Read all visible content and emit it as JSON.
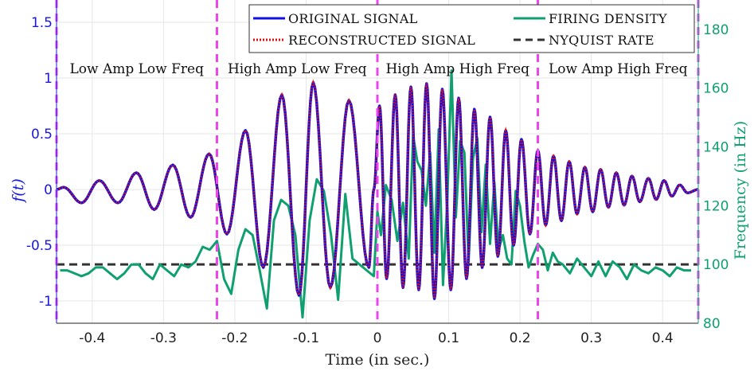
{
  "chart_data": {
    "type": "line",
    "xlabel": "Time (in sec.)",
    "ylabel_left": "f(t)",
    "ylabel_right": "Frequency (in Hz)",
    "xlim": [
      -0.45,
      0.45
    ],
    "ylim_left": [
      -1.2,
      1.7
    ],
    "ylim_right": [
      80,
      190
    ],
    "x_ticks": [
      -0.4,
      -0.3,
      -0.2,
      -0.1,
      0,
      0.1,
      0.2,
      0.3,
      0.4
    ],
    "x_tick_labels": [
      "-0.4",
      "-0.3",
      "-0.2",
      "-0.1",
      "0",
      "0.1",
      "0.2",
      "0.3",
      "0.4"
    ],
    "y_left_ticks": [
      -1,
      -0.5,
      0,
      0.5,
      1,
      1.5
    ],
    "y_left_tick_labels": [
      "-1",
      "-0.5",
      "0",
      "0.5",
      "1",
      "1.5"
    ],
    "y_right_ticks": [
      80,
      100,
      120,
      140,
      160,
      180
    ],
    "y_right_tick_labels": [
      "80",
      "100",
      "120",
      "140",
      "160",
      "180"
    ],
    "grid": true,
    "legend_position": "top-right",
    "legend": [
      {
        "label": "ORIGINAL SIGNAL",
        "color": "#1010e0",
        "style": "solid"
      },
      {
        "label": "RECONSTRUCTED SIGNAL",
        "color": "#e01010",
        "style": "dotted"
      },
      {
        "label": "FIRING DENSITY",
        "color": "#10a070",
        "style": "solid"
      },
      {
        "label": "NYQUIST RATE",
        "color": "#333333",
        "style": "dashed"
      }
    ],
    "regions": [
      {
        "label": "Low Amp Low Freq",
        "x_center": -0.3375
      },
      {
        "label": "High Amp Low Freq",
        "x_center": -0.1125
      },
      {
        "label": "High Amp High Freq",
        "x_center": 0.1125
      },
      {
        "label": "Low Amp High Freq",
        "x_center": 0.3375
      }
    ],
    "region_boundaries": [
      -0.45,
      -0.225,
      0,
      0.225,
      0.45
    ],
    "nyquist_rate": 100,
    "signal_extrema": {
      "x": [
        -0.45,
        -0.44,
        -0.415,
        -0.39,
        -0.364,
        -0.338,
        -0.313,
        -0.287,
        -0.262,
        -0.236,
        -0.211,
        -0.185,
        -0.16,
        -0.134,
        -0.11,
        -0.09,
        -0.066,
        -0.04,
        -0.012,
        -0.005,
        0.003,
        0.013,
        0.025,
        0.036,
        0.047,
        0.058,
        0.069,
        0.08,
        0.091,
        0.103,
        0.114,
        0.125,
        0.136,
        0.147,
        0.158,
        0.169,
        0.18,
        0.191,
        0.202,
        0.214,
        0.225,
        0.236,
        0.247,
        0.258,
        0.269,
        0.28,
        0.291,
        0.302,
        0.313,
        0.324,
        0.335,
        0.346,
        0.357,
        0.368,
        0.38,
        0.391,
        0.402,
        0.413,
        0.424,
        0.435,
        0.45
      ],
      "f": [
        0.0,
        0.02,
        -0.12,
        0.08,
        -0.12,
        0.15,
        -0.18,
        0.22,
        -0.25,
        0.32,
        -0.4,
        0.53,
        -0.7,
        0.85,
        -0.95,
        0.96,
        -0.88,
        0.8,
        -0.7,
        0.0,
        0.75,
        -0.8,
        0.85,
        -0.88,
        0.92,
        -0.9,
        0.95,
        -0.98,
        0.9,
        -0.9,
        0.82,
        -0.8,
        0.72,
        -0.7,
        0.65,
        -0.6,
        0.53,
        -0.5,
        0.45,
        -0.4,
        0.35,
        -0.32,
        0.3,
        -0.28,
        0.25,
        -0.22,
        0.2,
        -0.2,
        0.18,
        -0.16,
        0.15,
        -0.14,
        0.12,
        -0.11,
        0.1,
        -0.09,
        0.08,
        -0.06,
        0.04,
        -0.03,
        0.0
      ]
    },
    "firing_density": {
      "x": [
        -0.445,
        -0.435,
        -0.425,
        -0.415,
        -0.405,
        -0.395,
        -0.385,
        -0.375,
        -0.365,
        -0.355,
        -0.345,
        -0.335,
        -0.325,
        -0.315,
        -0.305,
        -0.295,
        -0.285,
        -0.275,
        -0.265,
        -0.255,
        -0.245,
        -0.235,
        -0.225,
        -0.215,
        -0.205,
        -0.195,
        -0.185,
        -0.175,
        -0.165,
        -0.155,
        -0.145,
        -0.135,
        -0.125,
        -0.115,
        -0.105,
        -0.095,
        -0.085,
        -0.075,
        -0.065,
        -0.055,
        -0.045,
        -0.035,
        -0.025,
        -0.015,
        -0.005,
        0.0,
        0.005,
        0.012,
        0.02,
        0.028,
        0.036,
        0.044,
        0.05,
        0.056,
        0.062,
        0.068,
        0.074,
        0.08,
        0.086,
        0.092,
        0.098,
        0.104,
        0.11,
        0.116,
        0.122,
        0.128,
        0.134,
        0.14,
        0.146,
        0.152,
        0.158,
        0.164,
        0.17,
        0.176,
        0.182,
        0.188,
        0.194,
        0.2,
        0.206,
        0.212,
        0.218,
        0.225,
        0.232,
        0.239,
        0.246,
        0.253,
        0.26,
        0.27,
        0.28,
        0.29,
        0.3,
        0.31,
        0.32,
        0.33,
        0.34,
        0.35,
        0.36,
        0.37,
        0.38,
        0.39,
        0.4,
        0.41,
        0.42,
        0.43,
        0.44
      ],
      "hz": [
        98,
        98,
        97,
        96,
        97,
        99,
        99,
        97,
        95,
        97,
        100,
        100,
        97,
        95,
        100,
        98,
        96,
        100,
        99,
        101,
        106,
        105,
        108,
        95,
        90,
        105,
        112,
        110,
        98,
        85,
        115,
        122,
        120,
        110,
        82,
        115,
        129,
        125,
        110,
        88,
        124,
        102,
        100,
        98,
        96,
        118,
        110,
        127,
        122,
        108,
        121,
        102,
        144,
        135,
        132,
        120,
        138,
        104,
        146,
        93,
        122,
        166,
        116,
        142,
        138,
        101,
        136,
        143,
        111,
        134,
        107,
        128,
        105,
        110,
        102,
        100,
        125,
        120,
        108,
        99,
        103,
        107,
        105,
        98,
        104,
        101,
        100,
        97,
        102,
        99,
        96,
        101,
        96,
        101,
        99,
        95,
        100,
        98,
        97,
        99,
        98,
        96,
        99,
        98,
        98
      ]
    }
  }
}
